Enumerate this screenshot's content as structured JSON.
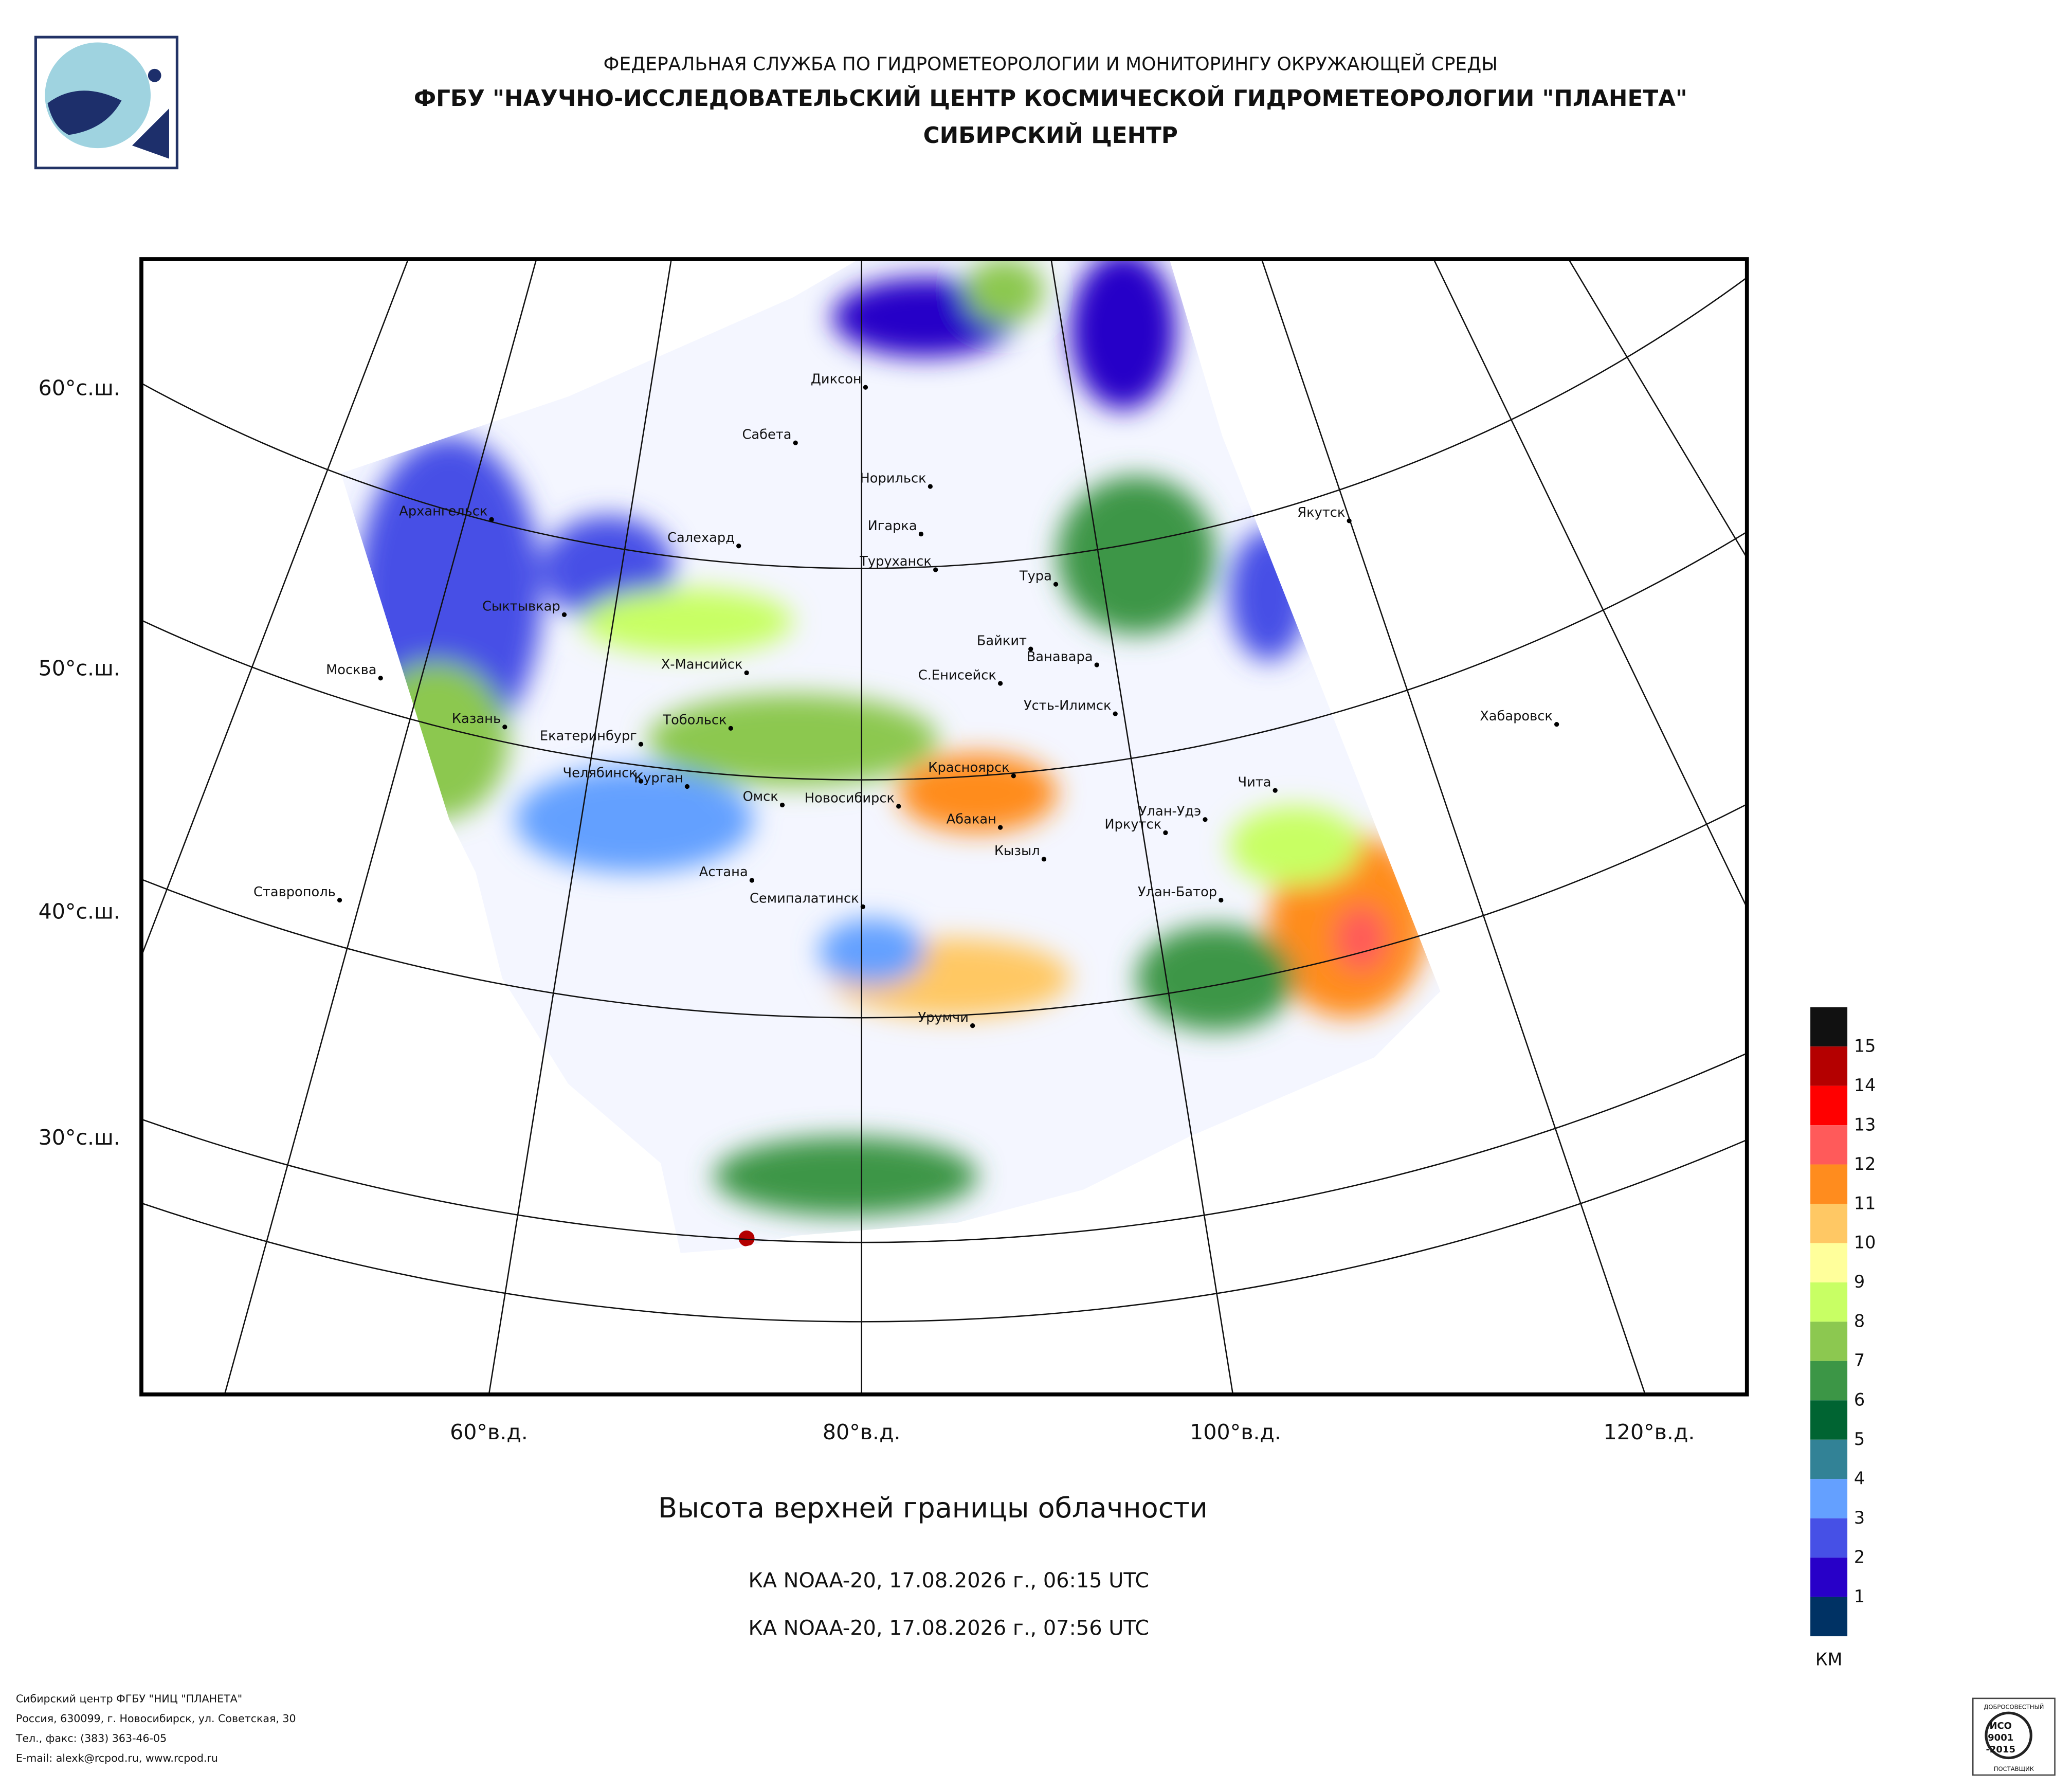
{
  "header": {
    "agency": "ФЕДЕРАЛЬНАЯ СЛУЖБА ПО ГИДРОМЕТЕОРОЛОГИИ И МОНИТОРИНГУ ОКРУЖАЮЩЕЙ СРЕДЫ",
    "institute": "ФГБУ \"НАУЧНО-ИССЛЕДОВАТЕЛЬСКИЙ ЦЕНТР КОСМИЧЕСКОЙ ГИДРОМЕТЕОРОЛОГИИ \"ПЛАНЕТА\"",
    "center": "СИБИРСКИЙ ЦЕНТР"
  },
  "map": {
    "lat_labels": [
      "60°с.ш.",
      "50°с.ш.",
      "40°с.ш.",
      "30°с.ш."
    ],
    "lon_labels": [
      "60°в.д.",
      "80°в.д.",
      "100°в.д.",
      "120°в.д."
    ],
    "cities": [
      "Диксон",
      "Сабета",
      "Норильск",
      "Архангельск",
      "Игарка",
      "Салехард",
      "Якутск",
      "Туруханск",
      "Тура",
      "Сыктывкар",
      "Байкит",
      "Ванавара",
      "Москва",
      "Х-Мансийск",
      "С.Енисейск",
      "Усть-Илимск",
      "Хабаровск",
      "Казань",
      "Тобольск",
      "Екатеринбург",
      "Красноярск",
      "Чита",
      "Челябинск",
      "Курган",
      "Омск",
      "Новосибирск",
      "Улан-Удэ",
      "Абакан",
      "Иркутск",
      "Кызыл",
      "Астана",
      "Ставрополь",
      "Улан-Батор",
      "Семипалатинск",
      "Урумчи"
    ]
  },
  "legend": {
    "unit": "КМ",
    "levels": [
      15,
      14,
      13,
      12,
      11,
      10,
      9,
      8,
      7,
      6,
      5,
      4,
      3,
      2,
      1
    ],
    "colors": [
      "#111111",
      "#b40000",
      "#ff0000",
      "#ff5a5a",
      "#ff8c1e",
      "#ffc864",
      "#ffff9b",
      "#c8ff64",
      "#8cc850",
      "#3c9646",
      "#006432",
      "#328296",
      "#64a0ff",
      "#4650e6",
      "#2800c8",
      "#003264"
    ]
  },
  "title": "Высота верхней границы облачности",
  "passes": [
    "КА NOAA-20, 17.08.2026 г., 06:15 UTC",
    "КА NOAA-20, 17.08.2026 г., 07:56 UTC"
  ],
  "footer": [
    "Сибирский центр ФГБУ \"НИЦ \"ПЛАНЕТА\"",
    "Россия, 630099, г. Новосибирск, ул. Советская, 30",
    "Тел., факс: (383) 363-46-05",
    "E-mail: alexk@rcpod.ru, www.rcpod.ru"
  ],
  "certificate": {
    "top": "ДОБРОСОВЕСТНЫЙ",
    "mark": "ИСО",
    "standard": "9001",
    "year": "-2015",
    "bottom": "ПОСТАВЩИК"
  }
}
